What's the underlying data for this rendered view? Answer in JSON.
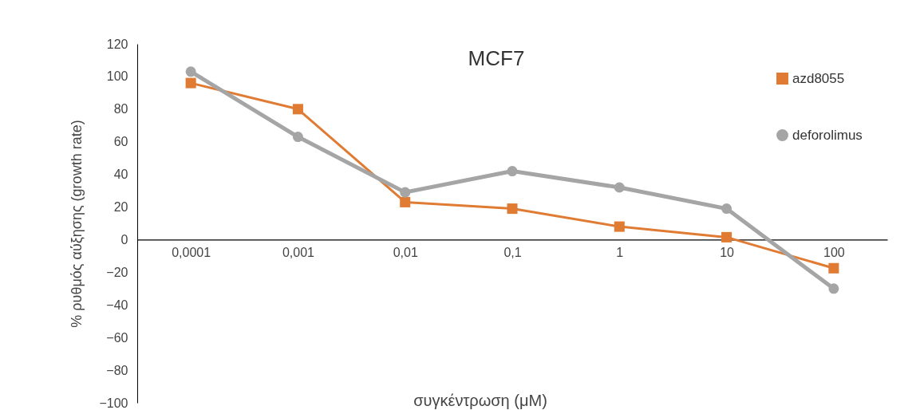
{
  "chart_data": {
    "type": "line",
    "title": "MCF7",
    "xlabel": "συγκέντρωση (μM)",
    "ylabel": "% ρυθμός αύξησης (growth rate)",
    "categories": [
      "0,0001",
      "0,001",
      "0,01",
      "0,1",
      "1",
      "10",
      "100"
    ],
    "series": [
      {
        "name": "azd8055",
        "color": "#e07b33",
        "marker": "square",
        "values": [
          96,
          80,
          23,
          19,
          8,
          1.5,
          -17.5
        ]
      },
      {
        "name": "deforolimus",
        "color": "#a5a5a5",
        "marker": "circle",
        "values": [
          103,
          63,
          29,
          42,
          32,
          19,
          -30
        ]
      }
    ],
    "ylim": [
      -100,
      120
    ],
    "yticks": [
      -100,
      -80,
      -60,
      -40,
      -20,
      0,
      20,
      40,
      60,
      80,
      100,
      120
    ],
    "grid": false,
    "legend": "top right"
  }
}
